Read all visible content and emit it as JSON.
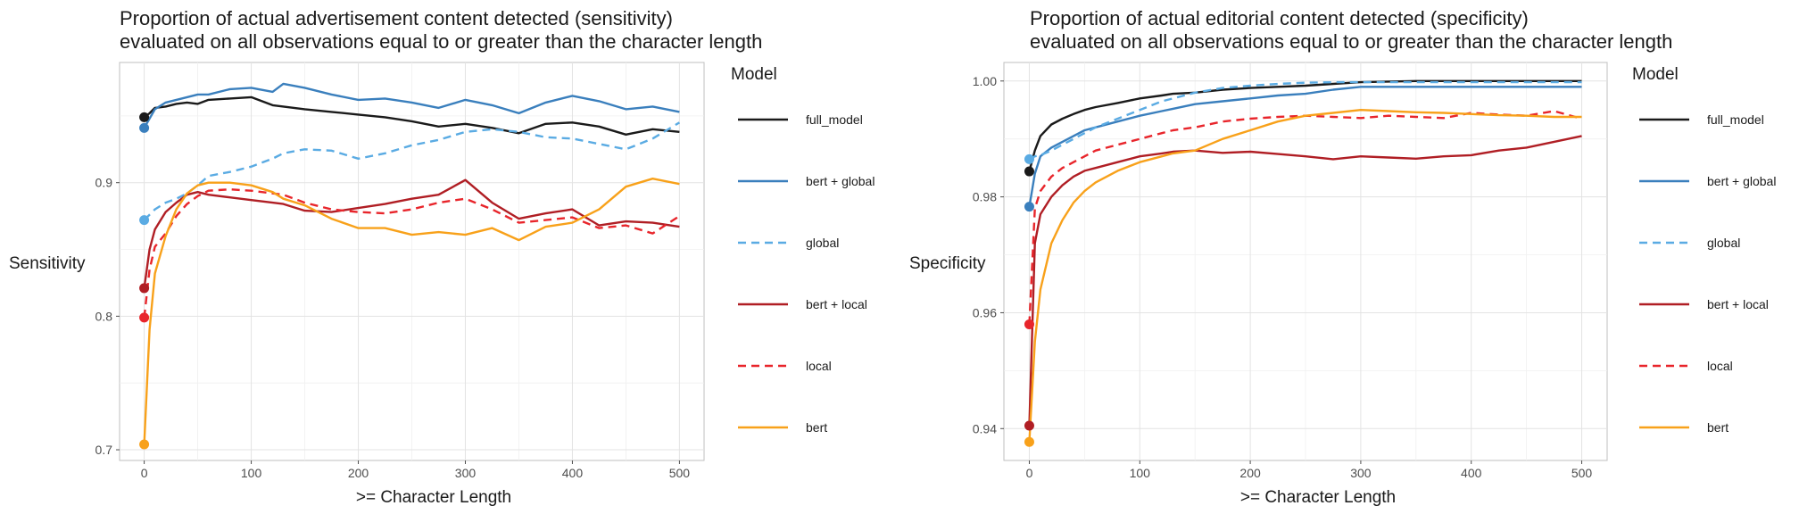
{
  "legend_title": "Model",
  "series_styles": [
    {
      "name": "full_model",
      "label": "full_model",
      "color": "#1a1a1a",
      "dash": "solid"
    },
    {
      "name": "bert + global",
      "label": "bert + global",
      "color": "#3a7fbd",
      "dash": "solid"
    },
    {
      "name": "global",
      "label": "global",
      "color": "#5aabe3",
      "dash": "dashed"
    },
    {
      "name": "bert + local",
      "label": "bert + local",
      "color": "#b01e24",
      "dash": "solid"
    },
    {
      "name": "local",
      "label": "local",
      "color": "#e8252b",
      "dash": "dashed"
    },
    {
      "name": "bert",
      "label": "bert",
      "color": "#f8a11a",
      "dash": "solid"
    }
  ],
  "chart_data": [
    {
      "type": "line",
      "title": "Proportion of actual advertisement content detected (sensitivity)",
      "subtitle": "evaluated on all observations equal to or greater than the character length",
      "xlabel": ">= Character Length",
      "ylabel": "Sensitivity",
      "xlim": [
        -23,
        523
      ],
      "ylim": [
        0.692,
        0.99
      ],
      "xticks": [
        0,
        100,
        200,
        300,
        400,
        500
      ],
      "xtick_labels": [
        "0",
        "100",
        "200",
        "300",
        "400",
        "500"
      ],
      "yticks": [
        0.7,
        0.8,
        0.9
      ],
      "ytick_labels": [
        "0.7",
        "0.8",
        "0.9"
      ],
      "grid": true,
      "legend": "right",
      "x": [
        0,
        5,
        10,
        20,
        30,
        40,
        50,
        60,
        80,
        100,
        120,
        130,
        150,
        175,
        200,
        225,
        250,
        275,
        300,
        325,
        350,
        375,
        400,
        425,
        450,
        475,
        500
      ],
      "series": [
        {
          "name": "full_model",
          "start_point": [
            0,
            0.949
          ],
          "values": [
            0.949,
            0.952,
            0.956,
            0.957,
            0.959,
            0.96,
            0.959,
            0.962,
            0.963,
            0.964,
            0.958,
            0.957,
            0.955,
            0.953,
            0.951,
            0.949,
            0.946,
            0.942,
            0.944,
            0.941,
            0.937,
            0.944,
            0.945,
            0.942,
            0.936,
            0.94,
            0.938
          ]
        },
        {
          "name": "bert + global",
          "start_point": [
            0,
            0.941
          ],
          "values": [
            0.941,
            0.948,
            0.955,
            0.96,
            0.962,
            0.964,
            0.966,
            0.966,
            0.97,
            0.971,
            0.968,
            0.974,
            0.971,
            0.966,
            0.962,
            0.963,
            0.96,
            0.956,
            0.962,
            0.958,
            0.952,
            0.96,
            0.965,
            0.961,
            0.955,
            0.957,
            0.953
          ]
        },
        {
          "name": "global",
          "start_point": [
            0,
            0.872
          ],
          "values": [
            0.872,
            0.876,
            0.88,
            0.885,
            0.888,
            0.892,
            0.898,
            0.905,
            0.908,
            0.912,
            0.918,
            0.922,
            0.925,
            0.924,
            0.918,
            0.922,
            0.928,
            0.932,
            0.938,
            0.94,
            0.938,
            0.934,
            0.933,
            0.929,
            0.925,
            0.933,
            0.945
          ]
        },
        {
          "name": "bert + local",
          "start_point": [
            0,
            0.821
          ],
          "values": [
            0.821,
            0.85,
            0.865,
            0.878,
            0.885,
            0.891,
            0.893,
            0.891,
            0.889,
            0.887,
            0.885,
            0.884,
            0.879,
            0.878,
            0.881,
            0.884,
            0.888,
            0.891,
            0.902,
            0.885,
            0.873,
            0.877,
            0.88,
            0.868,
            0.871,
            0.87,
            0.867
          ]
        },
        {
          "name": "local",
          "start_point": [
            0,
            0.799
          ],
          "values": [
            0.799,
            0.835,
            0.852,
            0.862,
            0.875,
            0.884,
            0.89,
            0.894,
            0.895,
            0.894,
            0.892,
            0.891,
            0.885,
            0.88,
            0.878,
            0.877,
            0.88,
            0.885,
            0.888,
            0.88,
            0.87,
            0.872,
            0.874,
            0.866,
            0.868,
            0.862,
            0.875
          ]
        },
        {
          "name": "bert",
          "start_point": [
            0,
            0.704
          ],
          "values": [
            0.704,
            0.79,
            0.832,
            0.86,
            0.88,
            0.892,
            0.898,
            0.9,
            0.9,
            0.898,
            0.893,
            0.888,
            0.883,
            0.873,
            0.866,
            0.866,
            0.861,
            0.863,
            0.861,
            0.866,
            0.857,
            0.867,
            0.87,
            0.88,
            0.897,
            0.903,
            0.899
          ]
        }
      ]
    },
    {
      "type": "line",
      "title": "Proportion of actual editorial content detected (specificity)",
      "subtitle": "evaluated on all observations equal to or greater than the character length",
      "xlabel": ">= Character Length",
      "ylabel": "Specificity",
      "xlim": [
        -23,
        523
      ],
      "ylim": [
        0.9345,
        1.0032
      ],
      "xticks": [
        0,
        100,
        200,
        300,
        400,
        500
      ],
      "xtick_labels": [
        "0",
        "100",
        "200",
        "300",
        "400",
        "500"
      ],
      "yticks": [
        0.94,
        0.96,
        0.98,
        1.0
      ],
      "ytick_labels": [
        "0.94",
        "0.96",
        "0.98",
        "1.00"
      ],
      "grid": true,
      "legend": "right",
      "x": [
        0,
        5,
        10,
        20,
        30,
        40,
        50,
        60,
        80,
        100,
        120,
        130,
        150,
        175,
        200,
        225,
        250,
        275,
        300,
        325,
        350,
        375,
        400,
        425,
        450,
        475,
        500
      ],
      "series": [
        {
          "name": "full_model",
          "start_point": [
            0,
            0.9844
          ],
          "values": [
            0.9844,
            0.988,
            0.9905,
            0.9925,
            0.9935,
            0.9943,
            0.995,
            0.9955,
            0.9962,
            0.997,
            0.9975,
            0.9978,
            0.998,
            0.9985,
            0.9988,
            0.999,
            0.9992,
            0.9995,
            0.9998,
            0.9999,
            1.0,
            1.0,
            1.0,
            1.0,
            1.0,
            1.0,
            1.0
          ]
        },
        {
          "name": "bert + global",
          "start_point": [
            0,
            0.9783
          ],
          "values": [
            0.9783,
            0.984,
            0.987,
            0.9885,
            0.9895,
            0.9905,
            0.9915,
            0.992,
            0.993,
            0.994,
            0.9948,
            0.9952,
            0.996,
            0.9965,
            0.997,
            0.9975,
            0.9978,
            0.9985,
            0.999,
            0.999,
            0.999,
            0.999,
            0.999,
            0.999,
            0.999,
            0.999,
            0.999
          ]
        },
        {
          "name": "global",
          "start_point": [
            0,
            0.9865
          ],
          "values": [
            0.9865,
            0.987,
            0.9872,
            0.988,
            0.989,
            0.99,
            0.991,
            0.992,
            0.9935,
            0.995,
            0.9965,
            0.997,
            0.998,
            0.9988,
            0.9992,
            0.9995,
            0.9997,
            0.9998,
            0.9998,
            0.9998,
            0.9998,
            0.9998,
            0.9998,
            0.9998,
            0.9998,
            0.9998,
            0.9998
          ]
        },
        {
          "name": "bert + local",
          "start_point": [
            0,
            0.9405
          ],
          "values": [
            0.9405,
            0.972,
            0.977,
            0.98,
            0.982,
            0.9835,
            0.9845,
            0.985,
            0.986,
            0.987,
            0.9875,
            0.9878,
            0.988,
            0.9876,
            0.9878,
            0.9874,
            0.987,
            0.9865,
            0.987,
            0.9868,
            0.9866,
            0.987,
            0.9872,
            0.988,
            0.9885,
            0.9895,
            0.9905
          ]
        },
        {
          "name": "local",
          "start_point": [
            0,
            0.958
          ],
          "values": [
            0.958,
            0.978,
            0.981,
            0.9835,
            0.985,
            0.986,
            0.987,
            0.988,
            0.989,
            0.99,
            0.991,
            0.9915,
            0.992,
            0.993,
            0.9935,
            0.9938,
            0.994,
            0.9938,
            0.9936,
            0.994,
            0.9938,
            0.9936,
            0.9945,
            0.9942,
            0.994,
            0.9948,
            0.9935
          ]
        },
        {
          "name": "bert",
          "start_point": [
            0,
            0.9377
          ],
          "values": [
            0.9377,
            0.955,
            0.964,
            0.972,
            0.976,
            0.979,
            0.981,
            0.9825,
            0.9845,
            0.986,
            0.987,
            0.9875,
            0.988,
            0.99,
            0.9915,
            0.993,
            0.994,
            0.9945,
            0.995,
            0.9948,
            0.9946,
            0.9945,
            0.9943,
            0.9941,
            0.994,
            0.9938,
            0.9938
          ]
        }
      ]
    }
  ]
}
